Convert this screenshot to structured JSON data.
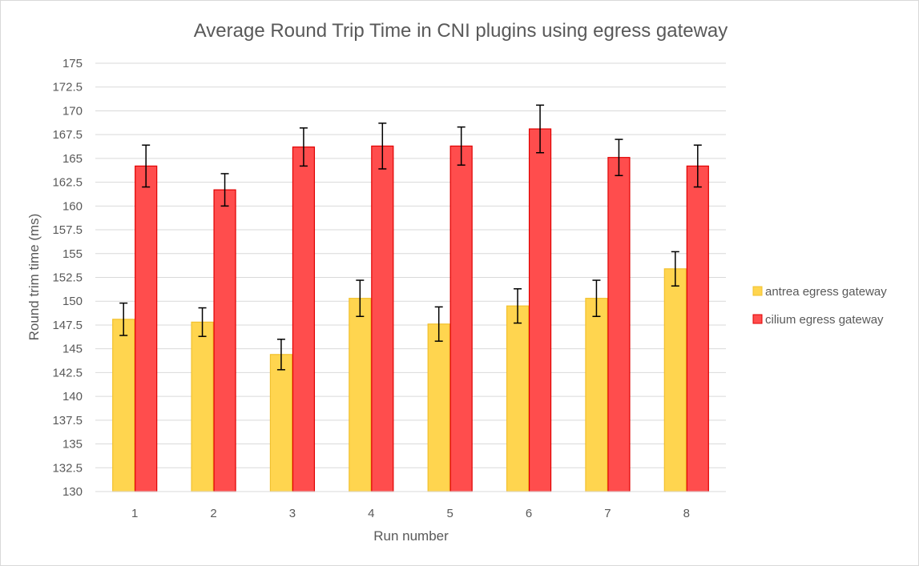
{
  "chart_data": {
    "type": "bar",
    "title": "Average Round Trip Time in CNI plugins using egress gateway",
    "xlabel": "Run number",
    "ylabel": "Round trim time (ms)",
    "categories": [
      "1",
      "2",
      "3",
      "4",
      "5",
      "6",
      "7",
      "8"
    ],
    "ylim": [
      130,
      175
    ],
    "ytick_step": 2.5,
    "ytick_labels": [
      "130",
      "132.5",
      "135",
      "137.5",
      "140",
      "142.5",
      "145",
      "147.5",
      "150",
      "152.5",
      "155",
      "157.5",
      "160",
      "162.5",
      "165",
      "167.5",
      "170",
      "172.5",
      "175"
    ],
    "grid": true,
    "legend_position": "right",
    "series": [
      {
        "name": "antrea egress gateway",
        "color": "#ffd54f",
        "border": "#f2c12e",
        "values": [
          148.1,
          147.8,
          144.4,
          150.3,
          147.6,
          149.5,
          150.3,
          153.4
        ],
        "error": [
          1.7,
          1.5,
          1.6,
          1.9,
          1.8,
          1.8,
          1.9,
          1.8
        ]
      },
      {
        "name": "cilium egress gateway",
        "color": "#ff4d4d",
        "border": "#e00000",
        "values": [
          164.2,
          161.7,
          166.2,
          166.3,
          166.3,
          168.1,
          165.1,
          164.2
        ],
        "error": [
          2.2,
          1.7,
          2.0,
          2.4,
          2.0,
          2.5,
          1.9,
          2.2
        ]
      }
    ]
  }
}
